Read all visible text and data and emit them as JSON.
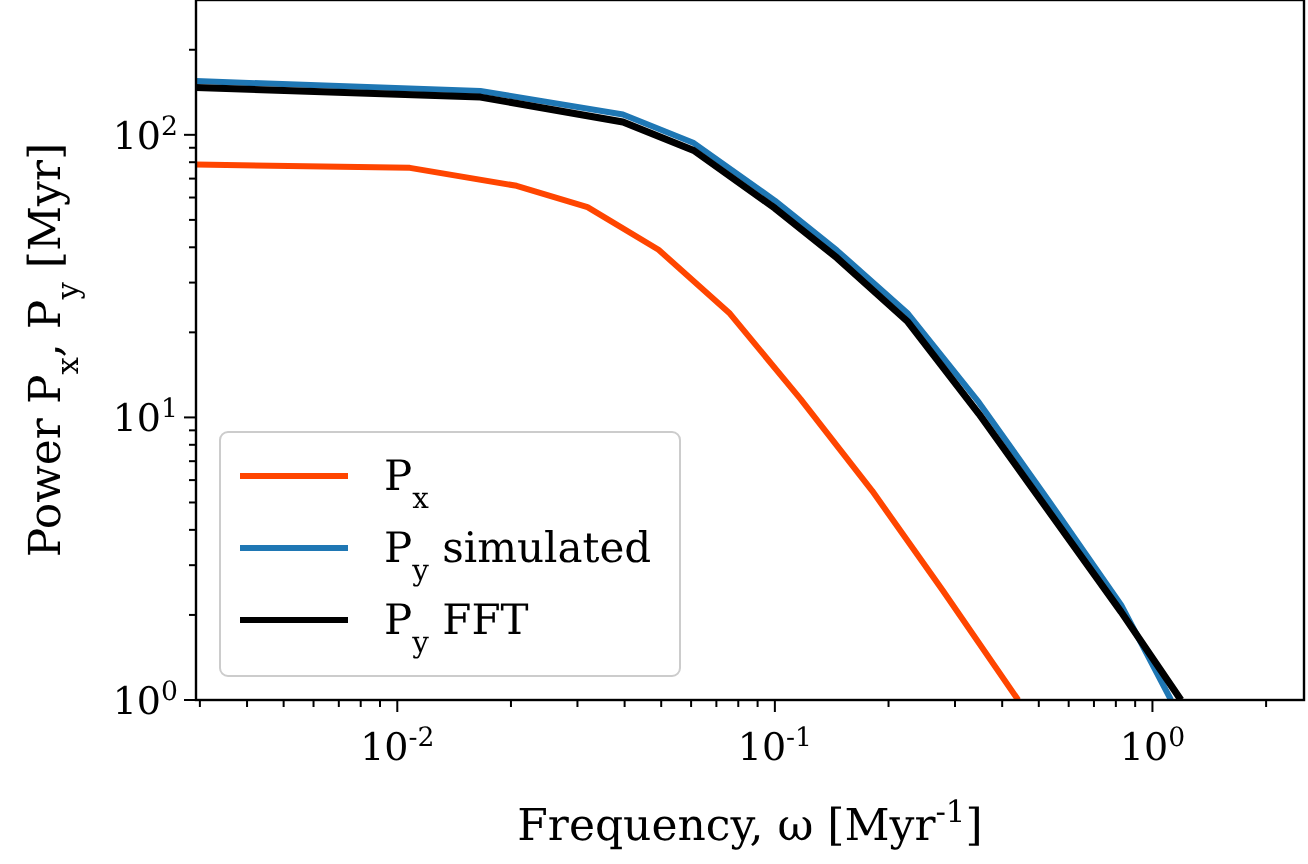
{
  "chart_data": {
    "type": "line",
    "xlabel": "Frequency, ω [Myr$^{-1}$]",
    "ylabel": "Power P$_{x}$, P$_{y}$ [Myr]",
    "log": "xy",
    "xlim": [
      0.00293,
      2.52
    ],
    "ylim": [
      1,
      300
    ],
    "xticks": [
      {
        "value": 0.003,
        "label": null
      },
      {
        "value": 0.004,
        "label": null
      },
      {
        "value": 0.005,
        "label": null
      },
      {
        "value": 0.006,
        "label": null
      },
      {
        "value": 0.007,
        "label": null
      },
      {
        "value": 0.008,
        "label": null
      },
      {
        "value": 0.009,
        "label": null
      },
      {
        "value": 0.01,
        "label": "10$^{-2}$"
      },
      {
        "value": 0.02,
        "label": null
      },
      {
        "value": 0.03,
        "label": null
      },
      {
        "value": 0.04,
        "label": null
      },
      {
        "value": 0.05,
        "label": null
      },
      {
        "value": 0.06,
        "label": null
      },
      {
        "value": 0.07,
        "label": null
      },
      {
        "value": 0.08,
        "label": null
      },
      {
        "value": 0.09,
        "label": null
      },
      {
        "value": 0.1,
        "label": "10$^{-1}$"
      },
      {
        "value": 0.2,
        "label": null
      },
      {
        "value": 0.3,
        "label": null
      },
      {
        "value": 0.4,
        "label": null
      },
      {
        "value": 0.5,
        "label": null
      },
      {
        "value": 0.6,
        "label": null
      },
      {
        "value": 0.7,
        "label": null
      },
      {
        "value": 0.8,
        "label": null
      },
      {
        "value": 0.9,
        "label": null
      },
      {
        "value": 1,
        "label": "10$^{0}$"
      },
      {
        "value": 2,
        "label": null
      }
    ],
    "yticks": [
      {
        "value": 1,
        "label": "10$^{0}$"
      },
      {
        "value": 2,
        "label": null
      },
      {
        "value": 3,
        "label": null
      },
      {
        "value": 4,
        "label": null
      },
      {
        "value": 5,
        "label": null
      },
      {
        "value": 6,
        "label": null
      },
      {
        "value": 7,
        "label": null
      },
      {
        "value": 8,
        "label": null
      },
      {
        "value": 9,
        "label": null
      },
      {
        "value": 10,
        "label": "10$^{1}$"
      },
      {
        "value": 20,
        "label": null
      },
      {
        "value": 30,
        "label": null
      },
      {
        "value": 40,
        "label": null
      },
      {
        "value": 50,
        "label": null
      },
      {
        "value": 60,
        "label": null
      },
      {
        "value": 70,
        "label": null
      },
      {
        "value": 80,
        "label": null
      },
      {
        "value": 90,
        "label": null
      },
      {
        "value": 100,
        "label": "10$^{2}$"
      },
      {
        "value": 200,
        "label": null
      }
    ],
    "grid": false,
    "legend": "bottom left",
    "series": [
      {
        "name": "P$_{x}$",
        "color": "#ff4500",
        "x": [
          0.00293,
          0.0108,
          0.0207,
          0.0319,
          0.0492,
          0.076,
          0.117,
          0.181,
          0.279,
          0.441
        ],
        "values": [
          78.5,
          76.4,
          66,
          55.5,
          39.2,
          23.3,
          11.6,
          5.5,
          2.43,
          1
        ]
      },
      {
        "name": "P$_{y}$ simulated",
        "color": "#1f77b4",
        "x": [
          0.00293,
          0.0166,
          0.0396,
          0.061,
          0.1,
          0.146,
          0.225,
          0.347,
          0.535,
          0.826,
          1.12
        ],
        "values": [
          155,
          143,
          118,
          93.5,
          58.5,
          39,
          23.3,
          11.3,
          5.0,
          2.17,
          1
        ]
      },
      {
        "name": "P$_{y}$ FFT",
        "color": "#000000",
        "x": [
          0.00293,
          0.0166,
          0.0396,
          0.061,
          0.1,
          0.146,
          0.225,
          0.347,
          0.535,
          0.826,
          1.19
        ],
        "values": [
          147,
          136,
          111,
          88,
          55,
          36.7,
          21.8,
          10.3,
          4.6,
          2.05,
          1
        ]
      }
    ]
  }
}
